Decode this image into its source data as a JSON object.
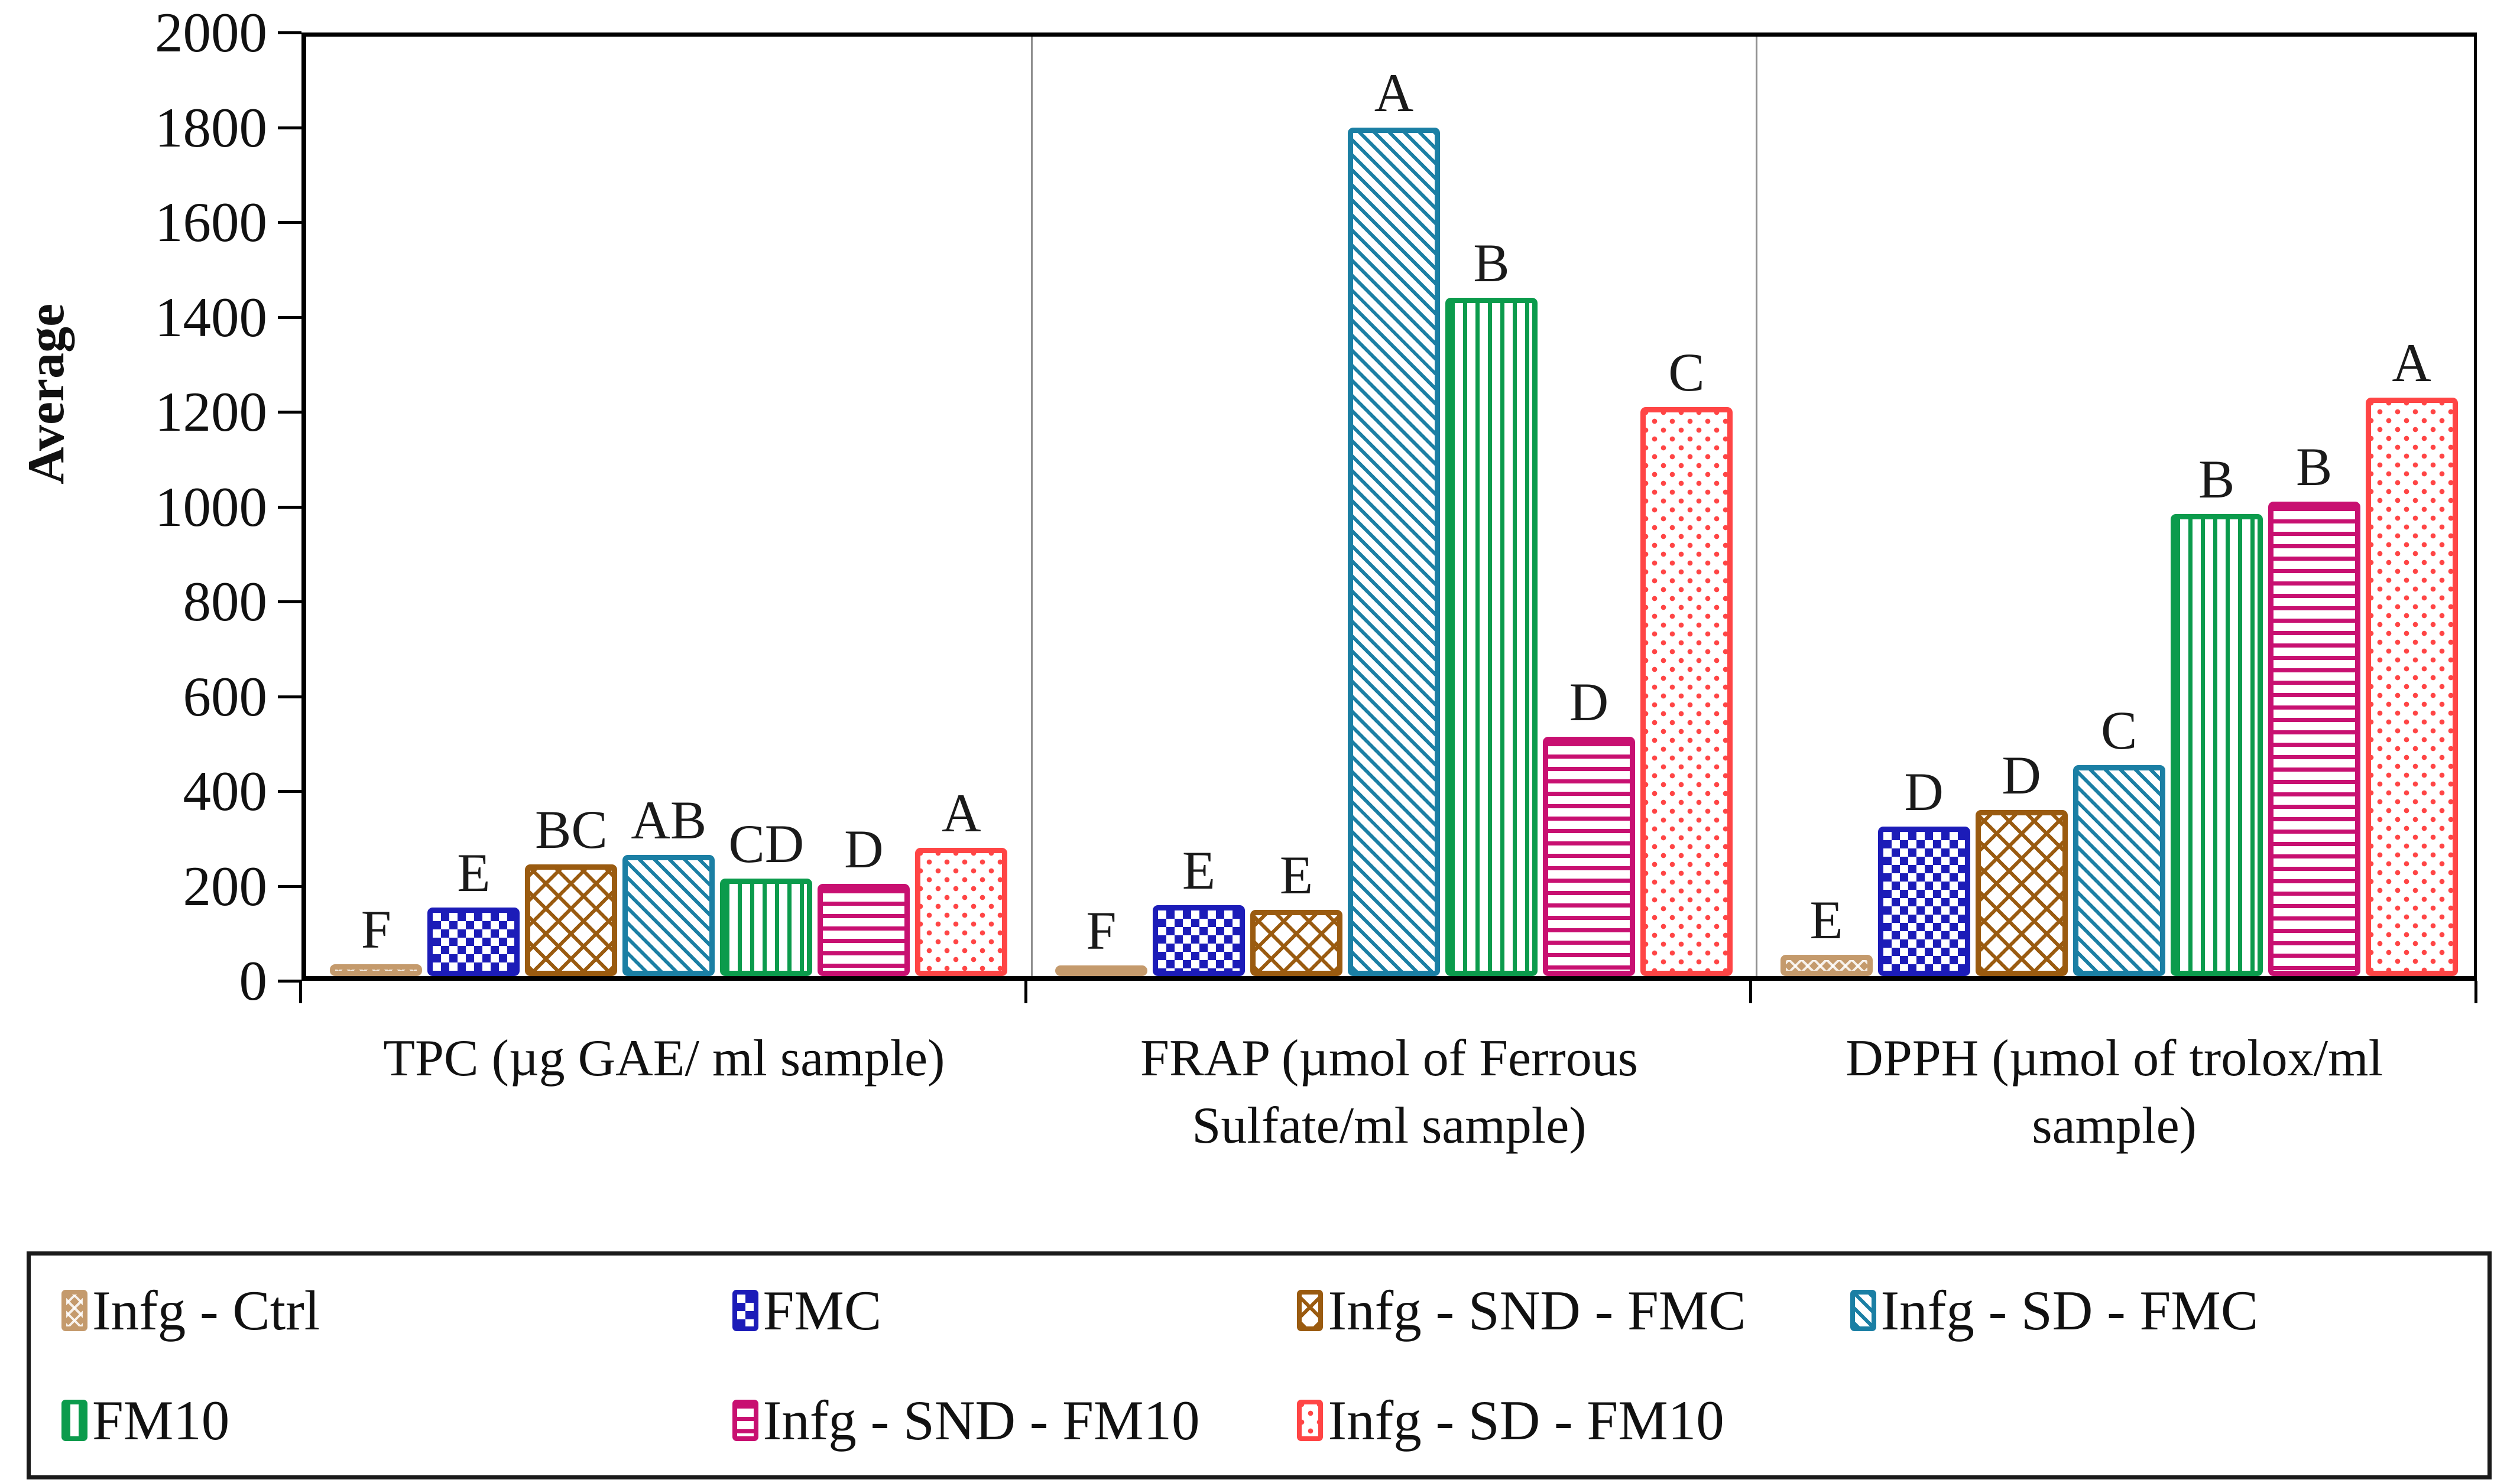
{
  "figure": {
    "background": "#ffffff",
    "plot_border_color": "#000000",
    "group_separator_color": "#8f8f8f",
    "sig_letter_color": "#1a1a1a"
  },
  "chart_data": {
    "type": "bar",
    "title": "",
    "xlabel": "",
    "ylabel": "Average",
    "ylim": [
      0,
      2000
    ],
    "ytick_step": 200,
    "yticks": [
      0,
      200,
      400,
      600,
      800,
      1000,
      1200,
      1400,
      1600,
      1800,
      2000
    ],
    "grid": false,
    "legend_position": "bottom",
    "categories": [
      "TPC (µg GAE/ ml sample)",
      "FRAP (µmol of Ferrous Sulfate/ml sample)",
      "DPPH (µmol of trolox/ml sample)"
    ],
    "series": [
      {
        "name": "Infg - Ctrl",
        "color": "#C49A6C",
        "pattern": "herringbone",
        "values": [
          25,
          5,
          45
        ],
        "sig_letters": [
          "F",
          "F",
          "E"
        ]
      },
      {
        "name": "FMC",
        "color": "#1C1CB8",
        "pattern": "checker",
        "values": [
          145,
          150,
          315
        ],
        "sig_letters": [
          "E",
          "E",
          "D"
        ]
      },
      {
        "name": "Infg - SND - FMC",
        "color": "#9A5B10",
        "pattern": "lattice",
        "values": [
          235,
          140,
          350
        ],
        "sig_letters": [
          "BC",
          "E",
          "D"
        ]
      },
      {
        "name": "Infg - SD - FMC",
        "color": "#1B7FA4",
        "pattern": "diag",
        "values": [
          255,
          1790,
          445
        ],
        "sig_letters": [
          "AB",
          "A",
          "C"
        ]
      },
      {
        "name": "FM10",
        "color": "#0B9B4C",
        "pattern": "vertical",
        "values": [
          205,
          1430,
          975
        ],
        "sig_letters": [
          "CD",
          "B",
          "B"
        ]
      },
      {
        "name": "Infg - SND - FM10",
        "color": "#C81071",
        "pattern": "horizontal",
        "values": [
          195,
          505,
          1000
        ],
        "sig_letters": [
          "D",
          "D",
          "B"
        ]
      },
      {
        "name": "Infg - SD - FM10",
        "color": "#FF4545",
        "pattern": "dots",
        "values": [
          270,
          1200,
          1220
        ],
        "sig_letters": [
          "A",
          "C",
          "A"
        ]
      }
    ]
  }
}
